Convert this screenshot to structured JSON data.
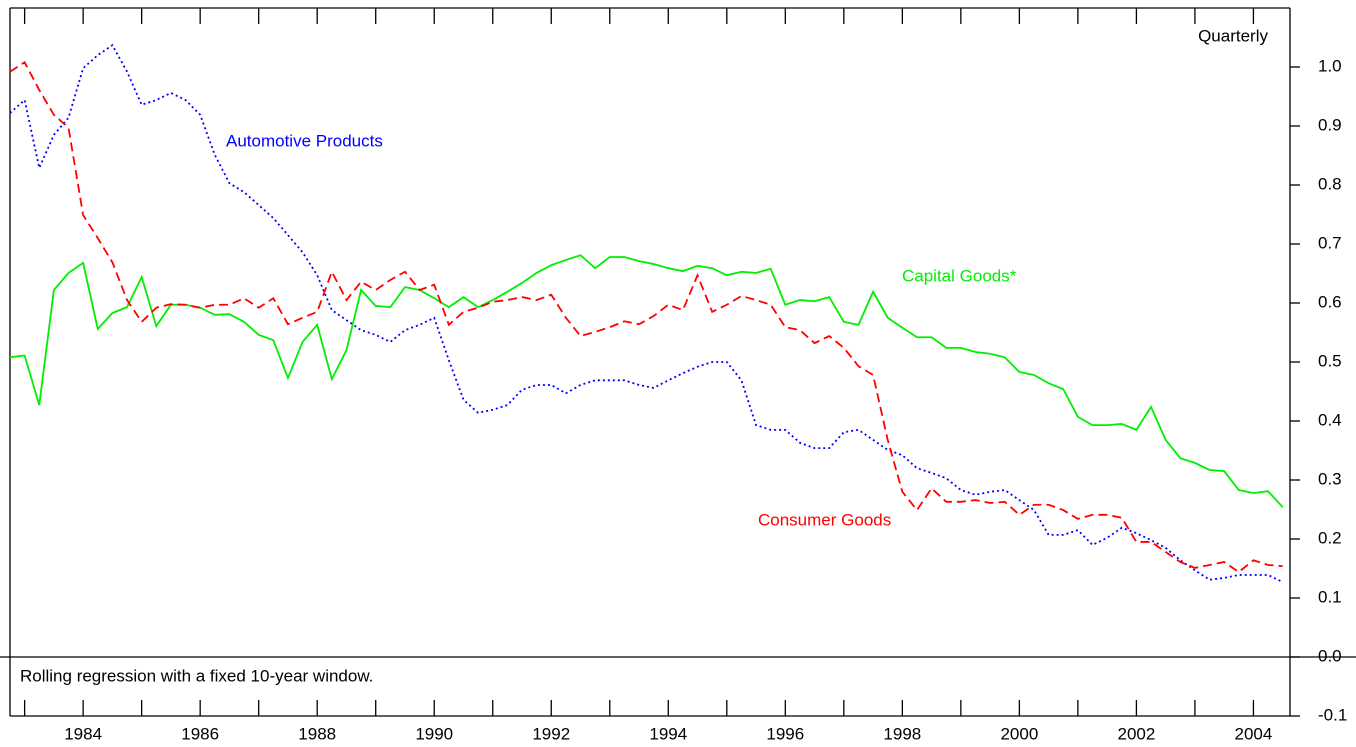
{
  "chart_data": {
    "type": "line",
    "subtitle": "Quarterly",
    "annotation": "Rolling regression with a fixed 10-year window.",
    "x": [
      1982.75,
      1983,
      1983.25,
      1983.5,
      1983.75,
      1984,
      1984.25,
      1984.5,
      1984.75,
      1985,
      1985.25,
      1985.5,
      1985.75,
      1986,
      1986.25,
      1986.5,
      1986.75,
      1987,
      1987.25,
      1987.5,
      1987.75,
      1988,
      1988.25,
      1988.5,
      1988.75,
      1989,
      1989.25,
      1989.5,
      1989.75,
      1990,
      1990.25,
      1990.5,
      1990.75,
      1991,
      1991.25,
      1991.5,
      1991.75,
      1992,
      1992.25,
      1992.5,
      1992.75,
      1993,
      1993.25,
      1993.5,
      1993.75,
      1994,
      1994.25,
      1994.5,
      1994.75,
      1995,
      1995.25,
      1995.5,
      1995.75,
      1996,
      1996.25,
      1996.5,
      1996.75,
      1997,
      1997.25,
      1997.5,
      1997.75,
      1998,
      1998.25,
      1998.5,
      1998.75,
      1999,
      1999.25,
      1999.5,
      1999.75,
      2000,
      2000.25,
      2000.5,
      2000.75,
      2001,
      2001.25,
      2001.5,
      2001.75,
      2002,
      2002.25,
      2002.5,
      2002.75,
      2003,
      2003.25,
      2003.5,
      2003.75,
      2004,
      2004.25,
      2004.5
    ],
    "series": [
      {
        "name": "Automotive Products",
        "color": "#0000ff",
        "style": "dotted",
        "values": [
          0.922,
          0.944,
          0.829,
          0.885,
          0.914,
          0.998,
          1.02,
          1.037,
          0.992,
          0.936,
          0.944,
          0.956,
          0.944,
          0.919,
          0.851,
          0.803,
          0.788,
          0.766,
          0.744,
          0.715,
          0.686,
          0.647,
          0.588,
          0.571,
          0.554,
          0.546,
          0.534,
          0.554,
          0.563,
          0.575,
          0.503,
          0.436,
          0.414,
          0.419,
          0.427,
          0.453,
          0.461,
          0.461,
          0.447,
          0.461,
          0.469,
          0.469,
          0.469,
          0.461,
          0.456,
          0.469,
          0.481,
          0.492,
          0.5,
          0.5,
          0.469,
          0.393,
          0.385,
          0.385,
          0.363,
          0.354,
          0.354,
          0.381,
          0.385,
          0.368,
          0.351,
          0.342,
          0.32,
          0.312,
          0.303,
          0.283,
          0.275,
          0.28,
          0.283,
          0.266,
          0.249,
          0.207,
          0.207,
          0.215,
          0.19,
          0.202,
          0.219,
          0.21,
          0.198,
          0.185,
          0.164,
          0.147,
          0.131,
          0.134,
          0.139,
          0.139,
          0.139,
          0.127
        ]
      },
      {
        "name": "Capital Goods*",
        "color": "#00ee00",
        "style": "solid",
        "values": [
          0.508,
          0.511,
          0.427,
          0.622,
          0.651,
          0.668,
          0.556,
          0.583,
          0.593,
          0.644,
          0.561,
          0.597,
          0.597,
          0.592,
          0.58,
          0.581,
          0.568,
          0.546,
          0.537,
          0.473,
          0.534,
          0.563,
          0.471,
          0.52,
          0.622,
          0.595,
          0.593,
          0.627,
          0.622,
          0.608,
          0.593,
          0.61,
          0.593,
          0.605,
          0.619,
          0.634,
          0.651,
          0.664,
          0.673,
          0.681,
          0.659,
          0.678,
          0.678,
          0.671,
          0.666,
          0.659,
          0.654,
          0.663,
          0.659,
          0.647,
          0.653,
          0.651,
          0.658,
          0.597,
          0.605,
          0.603,
          0.61,
          0.568,
          0.563,
          0.619,
          0.575,
          0.558,
          0.542,
          0.542,
          0.524,
          0.524,
          0.517,
          0.514,
          0.508,
          0.483,
          0.478,
          0.464,
          0.454,
          0.407,
          0.393,
          0.393,
          0.395,
          0.385,
          0.424,
          0.368,
          0.337,
          0.329,
          0.317,
          0.315,
          0.283,
          0.278,
          0.281,
          0.254
        ]
      },
      {
        "name": "Consumer Goods",
        "color": "#ff0000",
        "style": "dashed",
        "values": [
          0.992,
          1.008,
          0.961,
          0.919,
          0.897,
          0.749,
          0.71,
          0.669,
          0.605,
          0.568,
          0.592,
          0.598,
          0.597,
          0.592,
          0.597,
          0.597,
          0.608,
          0.592,
          0.608,
          0.564,
          0.575,
          0.585,
          0.653,
          0.605,
          0.636,
          0.622,
          0.639,
          0.653,
          0.622,
          0.631,
          0.563,
          0.585,
          0.592,
          0.602,
          0.605,
          0.61,
          0.605,
          0.614,
          0.575,
          0.544,
          0.551,
          0.559,
          0.569,
          0.564,
          0.578,
          0.597,
          0.588,
          0.647,
          0.585,
          0.597,
          0.612,
          0.605,
          0.597,
          0.559,
          0.554,
          0.532,
          0.544,
          0.524,
          0.493,
          0.478,
          0.368,
          0.28,
          0.249,
          0.286,
          0.263,
          0.263,
          0.266,
          0.261,
          0.263,
          0.241,
          0.258,
          0.258,
          0.249,
          0.234,
          0.241,
          0.241,
          0.236,
          0.195,
          0.195,
          0.178,
          0.161,
          0.151,
          0.156,
          0.161,
          0.144,
          0.164,
          0.156,
          0.154
        ]
      }
    ],
    "xlim": [
      1982.75,
      2004.625
    ],
    "xticks": [
      1984,
      1986,
      1988,
      1990,
      1992,
      1994,
      1996,
      1998,
      2000,
      2002,
      2004
    ],
    "xminor_ticks": [
      1983,
      1985,
      1987,
      1989,
      1991,
      1993,
      1995,
      1997,
      1999,
      2001,
      2003
    ],
    "ylim": [
      -0.1,
      1.1
    ],
    "yticks": [
      -0.1,
      {
        "value": 0,
        "label": "0.0"
      },
      0.1,
      0.2,
      0.3,
      0.4,
      0.5,
      0.6,
      0.7,
      0.8,
      0.9,
      {
        "value": 1,
        "label": "1.0"
      }
    ],
    "y_axis_side": "right",
    "grid": false
  }
}
